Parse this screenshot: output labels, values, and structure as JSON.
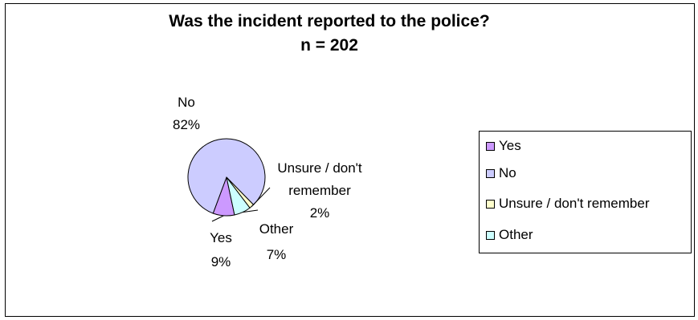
{
  "chart_data": {
    "type": "pie",
    "title": "Was the incident reported to the police?",
    "subtitle": "n = 202",
    "slices": [
      {
        "label": "Yes",
        "value": 9,
        "percent_label": "9%",
        "color": "#cc99ff"
      },
      {
        "label": "No",
        "value": 82,
        "percent_label": "82%",
        "color": "#ccccff"
      },
      {
        "label": "Unsure / don't remember",
        "value": 2,
        "percent_label": "2%",
        "color": "#ffffcc"
      },
      {
        "label": "Other",
        "value": 7,
        "percent_label": "7%",
        "color": "#ccffff"
      }
    ],
    "data_labels": {
      "yes": [
        "Yes",
        "9%"
      ],
      "no": [
        "No",
        "82%"
      ],
      "unsure": [
        "Unsure / don't",
        "remember",
        "2%"
      ],
      "other": [
        "Other",
        "7%"
      ]
    },
    "legend": {
      "position": "right",
      "entries": [
        "Yes",
        "No",
        "Unsure / don't remember",
        "Other"
      ]
    }
  }
}
